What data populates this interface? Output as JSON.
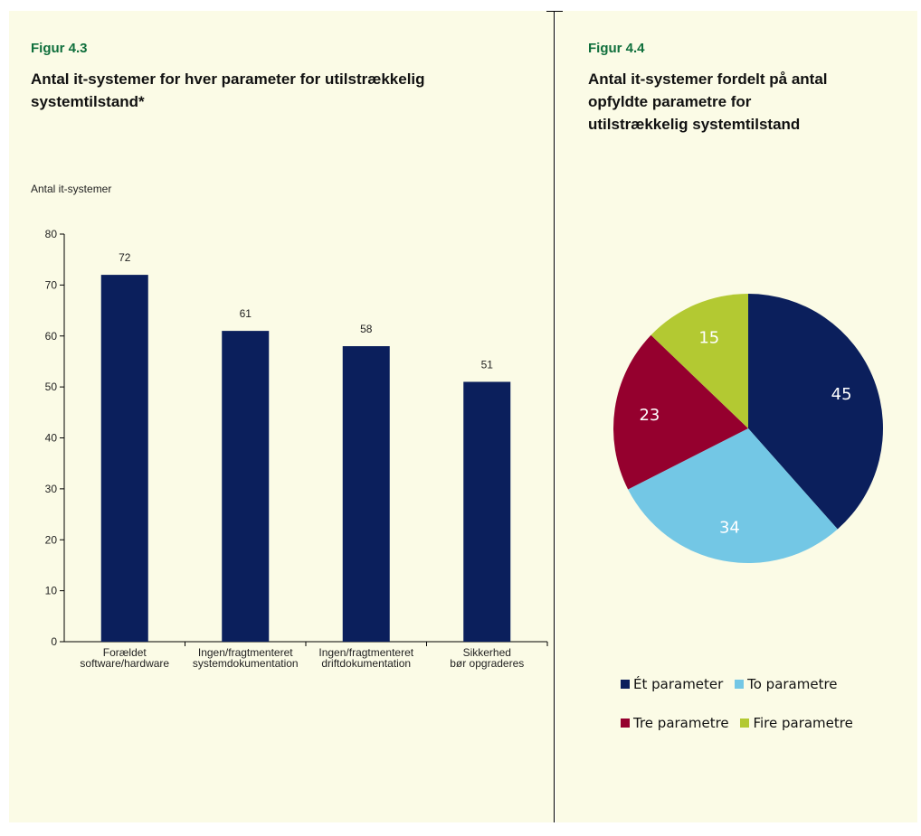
{
  "left_figure": {
    "label": "Figur 4.3",
    "title_line1": "Antal it-systemer for hver parameter for utilstrækkelig",
    "title_line2": "systemtilstand*"
  },
  "right_figure": {
    "label": "Figur 4.4",
    "title_line1": "Antal it-systemer fordelt på antal",
    "title_line2": "opfyldte parametre for",
    "title_line3": "utilstrækkelig systemtilstand"
  },
  "colors": {
    "panel_bg": "#fbfbe6",
    "bar": "#0b1f5c",
    "figure_label": "#0f6f3c"
  },
  "chart_data": [
    {
      "type": "bar",
      "ylabel": "Antal it-systemer",
      "ylim": [
        0,
        80
      ],
      "yticks": [
        0,
        10,
        20,
        30,
        40,
        50,
        60,
        70,
        80
      ],
      "categories": [
        [
          "Forældet",
          "software/hardware"
        ],
        [
          "Ingen/fragtmenteret",
          "systemdokumentation"
        ],
        [
          "Ingen/fragtmenteret",
          "driftdokumentation"
        ],
        [
          "Sikkerhed",
          "bør opgraderes"
        ]
      ],
      "values": [
        72,
        61,
        58,
        51
      ],
      "data_labels": true,
      "grid": false
    },
    {
      "type": "pie",
      "slices": [
        {
          "label": "Ét parameter",
          "value": 45,
          "color": "#0b1f5c",
          "text_color": "#ffffff"
        },
        {
          "label": "To parametre",
          "value": 34,
          "color": "#73c7e5",
          "text_color": "#ffffff"
        },
        {
          "label": "Tre parametre",
          "value": 23,
          "color": "#95002e",
          "text_color": "#ffffff"
        },
        {
          "label": "Fire parametre",
          "value": 15,
          "color": "#b3c932",
          "text_color": "#ffffff"
        }
      ],
      "legend_position": "bottom"
    }
  ]
}
